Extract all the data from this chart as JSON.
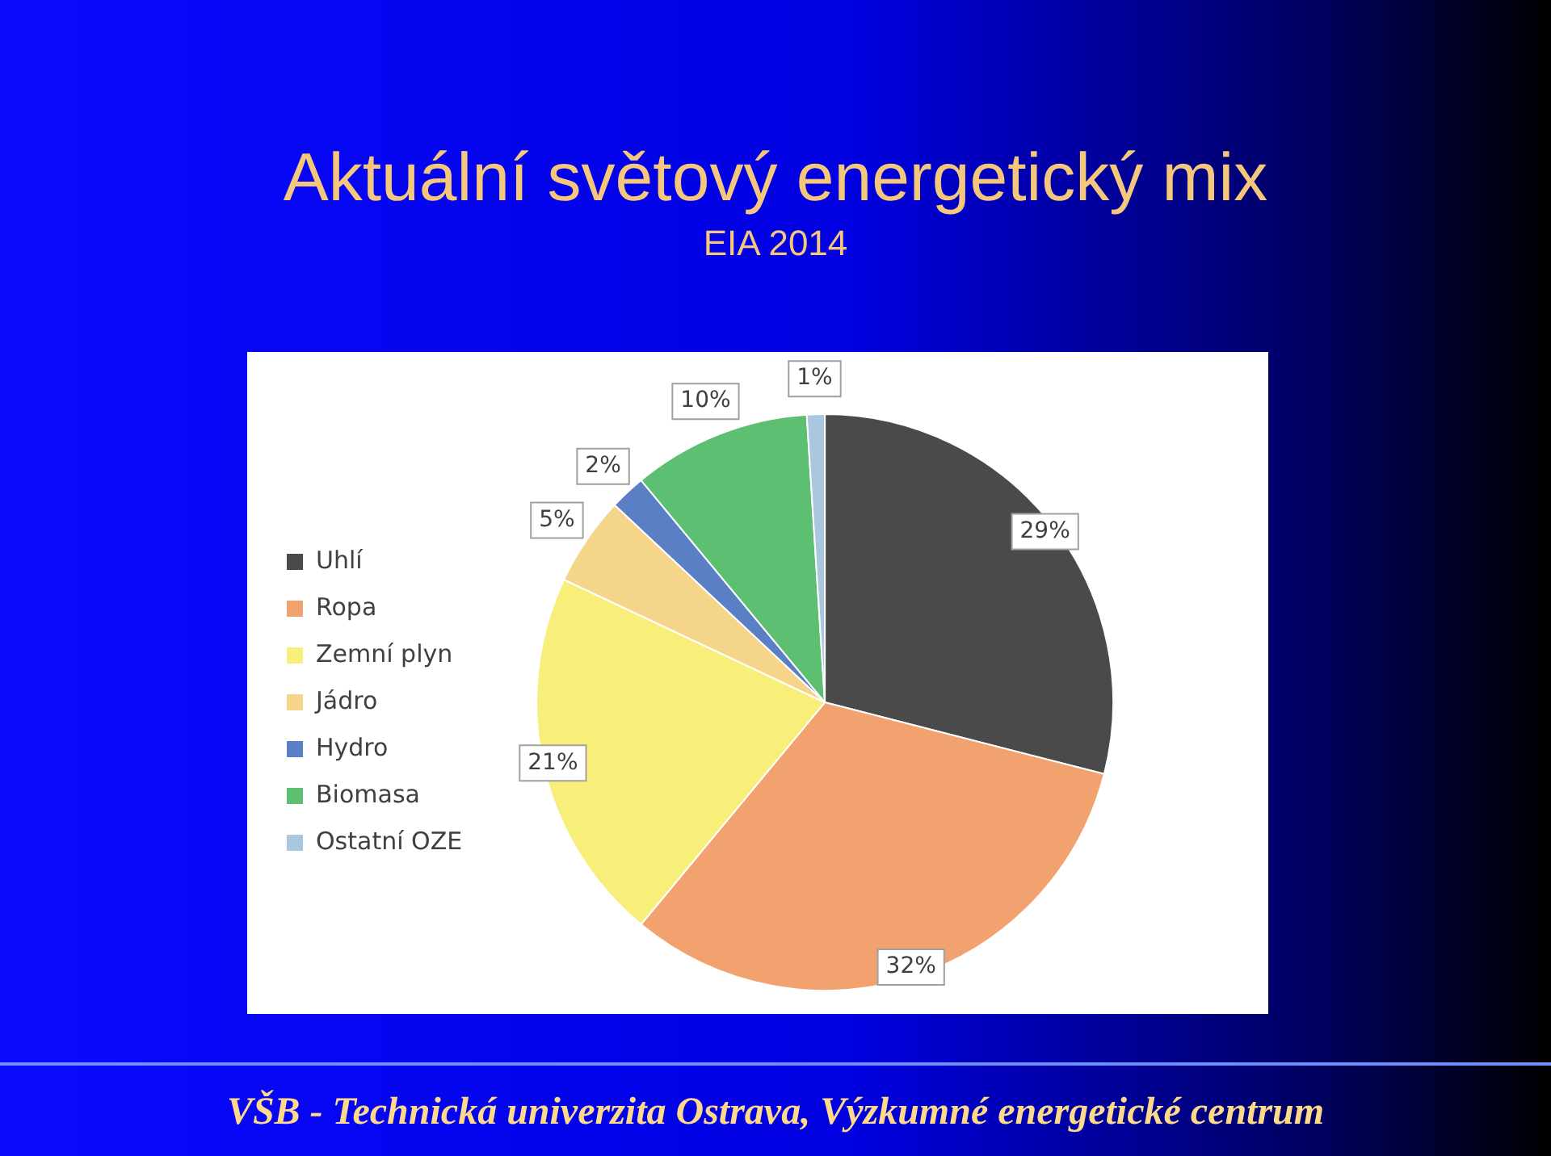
{
  "chart_data": {
    "type": "pie",
    "title": "Aktuální světový energetický mix",
    "subtitle": "EIA 2014",
    "categories": [
      "Uhlí",
      "Ropa",
      "Zemní plyn",
      "Jádro",
      "Hydro",
      "Biomasa",
      "Ostatní OZE"
    ],
    "values": [
      29,
      32,
      21,
      5,
      2,
      10,
      1
    ],
    "colors": [
      "#4a4a4a",
      "#f2a26e",
      "#f7ef7a",
      "#f5d58a",
      "#5b7fc4",
      "#5cbf72",
      "#a9c8e0"
    ],
    "value_labels": [
      "29%",
      "32%",
      "21%",
      "5%",
      "2%",
      "10%",
      "1%"
    ],
    "legend": "left",
    "annotations": [
      "VŠB - Technická univerzita Ostrava, Výzkumné energetické centrum"
    ]
  }
}
